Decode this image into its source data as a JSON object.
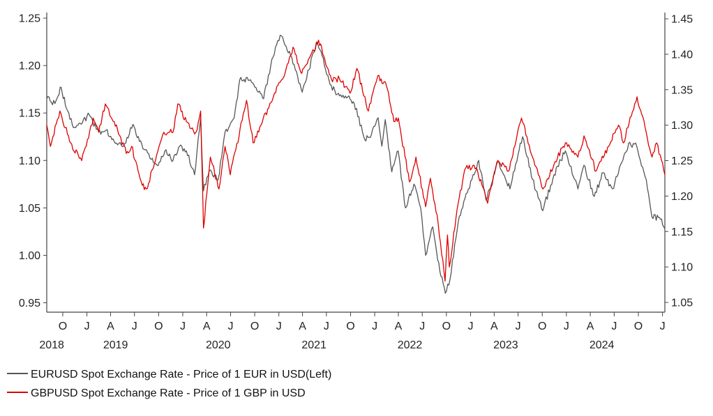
{
  "chart_data": {
    "type": "line",
    "title": "",
    "xlabel": "",
    "ylabel": "",
    "x_range": [
      "2018-08-01",
      "2025-01-10"
    ],
    "y_left": {
      "min": 0.95,
      "max": 1.25,
      "ticks": [
        "1.25",
        "1.20",
        "1.15",
        "1.10",
        "1.05",
        "1.00",
        "0.95"
      ]
    },
    "y_right": {
      "min": 1.05,
      "max": 1.45,
      "ticks": [
        "1.45",
        "1.40",
        "1.35",
        "1.30",
        "1.25",
        "1.20",
        "1.15",
        "1.10",
        "1.05"
      ]
    },
    "x_month_ticks": [
      {
        "date": "2018-10-01",
        "label": "O"
      },
      {
        "date": "2019-01-01",
        "label": "J"
      },
      {
        "date": "2019-04-01",
        "label": "A"
      },
      {
        "date": "2019-07-01",
        "label": "J"
      },
      {
        "date": "2019-10-01",
        "label": "O"
      },
      {
        "date": "2020-01-01",
        "label": "J"
      },
      {
        "date": "2020-04-01",
        "label": "A"
      },
      {
        "date": "2020-07-01",
        "label": "J"
      },
      {
        "date": "2020-10-01",
        "label": "O"
      },
      {
        "date": "2021-01-01",
        "label": "J"
      },
      {
        "date": "2021-04-01",
        "label": "A"
      },
      {
        "date": "2021-07-01",
        "label": "J"
      },
      {
        "date": "2021-10-01",
        "label": "O"
      },
      {
        "date": "2022-01-01",
        "label": "J"
      },
      {
        "date": "2022-04-01",
        "label": "A"
      },
      {
        "date": "2022-07-01",
        "label": "J"
      },
      {
        "date": "2022-10-01",
        "label": "O"
      },
      {
        "date": "2023-01-01",
        "label": "J"
      },
      {
        "date": "2023-04-01",
        "label": "A"
      },
      {
        "date": "2023-07-01",
        "label": "J"
      },
      {
        "date": "2023-10-01",
        "label": "O"
      },
      {
        "date": "2024-01-01",
        "label": "J"
      },
      {
        "date": "2024-04-01",
        "label": "A"
      },
      {
        "date": "2024-07-01",
        "label": "J"
      },
      {
        "date": "2024-10-01",
        "label": "O"
      },
      {
        "date": "2025-01-01",
        "label": "J"
      }
    ],
    "x_year_labels": [
      {
        "date": "2018-08-20",
        "label": "2018"
      },
      {
        "date": "2019-04-20",
        "label": "2019"
      },
      {
        "date": "2020-05-15",
        "label": "2020"
      },
      {
        "date": "2021-05-15",
        "label": "2021"
      },
      {
        "date": "2022-05-15",
        "label": "2022"
      },
      {
        "date": "2023-05-15",
        "label": "2023"
      },
      {
        "date": "2024-05-15",
        "label": "2024"
      }
    ],
    "grid": false,
    "legend_position": "bottom-left",
    "series": [
      {
        "name": "EURUSD Spot Exchange Rate - Price of 1 EUR in USD(Left)",
        "axis": "left",
        "color": "#555555",
        "points": [
          [
            "2018-08-01",
            1.165
          ],
          [
            "2018-09-01",
            1.16
          ],
          [
            "2018-09-25",
            1.177
          ],
          [
            "2018-10-15",
            1.155
          ],
          [
            "2018-11-15",
            1.135
          ],
          [
            "2018-12-15",
            1.14
          ],
          [
            "2019-01-10",
            1.148
          ],
          [
            "2019-02-15",
            1.13
          ],
          [
            "2019-03-15",
            1.132
          ],
          [
            "2019-04-15",
            1.12
          ],
          [
            "2019-05-20",
            1.115
          ],
          [
            "2019-06-25",
            1.138
          ],
          [
            "2019-07-20",
            1.12
          ],
          [
            "2019-08-20",
            1.108
          ],
          [
            "2019-09-25",
            1.095
          ],
          [
            "2019-10-25",
            1.11
          ],
          [
            "2019-11-25",
            1.1
          ],
          [
            "2019-12-20",
            1.115
          ],
          [
            "2020-01-15",
            1.11
          ],
          [
            "2020-02-15",
            1.085
          ],
          [
            "2020-03-09",
            1.145
          ],
          [
            "2020-03-20",
            1.068
          ],
          [
            "2020-04-15",
            1.09
          ],
          [
            "2020-05-15",
            1.08
          ],
          [
            "2020-06-10",
            1.13
          ],
          [
            "2020-07-15",
            1.145
          ],
          [
            "2020-08-05",
            1.185
          ],
          [
            "2020-09-15",
            1.185
          ],
          [
            "2020-10-15",
            1.172
          ],
          [
            "2020-11-04",
            1.165
          ],
          [
            "2020-12-01",
            1.2
          ],
          [
            "2021-01-06",
            1.232
          ],
          [
            "2021-02-15",
            1.21
          ],
          [
            "2021-03-31",
            1.172
          ],
          [
            "2021-05-25",
            1.225
          ],
          [
            "2021-06-15",
            1.21
          ],
          [
            "2021-07-15",
            1.18
          ],
          [
            "2021-08-20",
            1.168
          ],
          [
            "2021-09-25",
            1.168
          ],
          [
            "2021-10-15",
            1.16
          ],
          [
            "2021-11-24",
            1.122
          ],
          [
            "2021-12-20",
            1.128
          ],
          [
            "2022-01-14",
            1.145
          ],
          [
            "2022-01-28",
            1.115
          ],
          [
            "2022-02-10",
            1.143
          ],
          [
            "2022-03-07",
            1.088
          ],
          [
            "2022-03-31",
            1.11
          ],
          [
            "2022-04-28",
            1.05
          ],
          [
            "2022-05-30",
            1.075
          ],
          [
            "2022-06-25",
            1.05
          ],
          [
            "2022-07-14",
            1.0
          ],
          [
            "2022-08-10",
            1.03
          ],
          [
            "2022-08-29",
            0.995
          ],
          [
            "2022-09-27",
            0.96
          ],
          [
            "2022-10-15",
            0.975
          ],
          [
            "2022-11-15",
            1.035
          ],
          [
            "2022-12-15",
            1.065
          ],
          [
            "2023-01-15",
            1.085
          ],
          [
            "2023-02-01",
            1.1
          ],
          [
            "2023-03-01",
            1.058
          ],
          [
            "2023-04-15",
            1.1
          ],
          [
            "2023-05-31",
            1.07
          ],
          [
            "2023-07-18",
            1.125
          ],
          [
            "2023-08-25",
            1.08
          ],
          [
            "2023-10-03",
            1.047
          ],
          [
            "2023-11-15",
            1.085
          ],
          [
            "2023-12-28",
            1.11
          ],
          [
            "2024-02-14",
            1.07
          ],
          [
            "2024-03-08",
            1.095
          ],
          [
            "2024-04-16",
            1.062
          ],
          [
            "2024-05-20",
            1.087
          ],
          [
            "2024-06-25",
            1.07
          ],
          [
            "2024-08-25",
            1.118
          ],
          [
            "2024-09-25",
            1.115
          ],
          [
            "2024-10-31",
            1.08
          ],
          [
            "2024-11-22",
            1.04
          ],
          [
            "2024-12-20",
            1.04
          ],
          [
            "2025-01-10",
            1.028
          ]
        ]
      },
      {
        "name": "GBPUSD Spot Exchange Rate - Price of 1 GBP in USD",
        "axis": "right",
        "color": "#dd0000",
        "points": [
          [
            "2018-08-01",
            1.3
          ],
          [
            "2018-08-15",
            1.27
          ],
          [
            "2018-09-20",
            1.32
          ],
          [
            "2018-10-31",
            1.275
          ],
          [
            "2018-12-12",
            1.25
          ],
          [
            "2019-01-25",
            1.31
          ],
          [
            "2019-02-15",
            1.29
          ],
          [
            "2019-03-12",
            1.33
          ],
          [
            "2019-04-15",
            1.305
          ],
          [
            "2019-05-31",
            1.26
          ],
          [
            "2019-06-20",
            1.27
          ],
          [
            "2019-07-31",
            1.215
          ],
          [
            "2019-08-15",
            1.21
          ],
          [
            "2019-09-15",
            1.245
          ],
          [
            "2019-10-21",
            1.29
          ],
          [
            "2019-11-25",
            1.29
          ],
          [
            "2019-12-13",
            1.33
          ],
          [
            "2020-01-15",
            1.305
          ],
          [
            "2020-02-20",
            1.29
          ],
          [
            "2020-03-09",
            1.32
          ],
          [
            "2020-03-20",
            1.155
          ],
          [
            "2020-04-15",
            1.255
          ],
          [
            "2020-05-18",
            1.21
          ],
          [
            "2020-06-10",
            1.27
          ],
          [
            "2020-06-30",
            1.23
          ],
          [
            "2020-08-31",
            1.335
          ],
          [
            "2020-09-25",
            1.275
          ],
          [
            "2020-10-25",
            1.3
          ],
          [
            "2020-12-15",
            1.345
          ],
          [
            "2021-01-15",
            1.365
          ],
          [
            "2021-02-24",
            1.41
          ],
          [
            "2021-03-25",
            1.375
          ],
          [
            "2021-04-15",
            1.385
          ],
          [
            "2021-06-01",
            1.42
          ],
          [
            "2021-07-20",
            1.365
          ],
          [
            "2021-08-20",
            1.365
          ],
          [
            "2021-09-29",
            1.345
          ],
          [
            "2021-10-25",
            1.38
          ],
          [
            "2021-12-08",
            1.32
          ],
          [
            "2022-01-13",
            1.37
          ],
          [
            "2022-02-15",
            1.355
          ],
          [
            "2022-03-15",
            1.305
          ],
          [
            "2022-04-01",
            1.31
          ],
          [
            "2022-05-13",
            1.22
          ],
          [
            "2022-06-07",
            1.255
          ],
          [
            "2022-07-14",
            1.185
          ],
          [
            "2022-08-01",
            1.225
          ],
          [
            "2022-08-31",
            1.16
          ],
          [
            "2022-09-26",
            1.08
          ],
          [
            "2022-10-05",
            1.145
          ],
          [
            "2022-10-12",
            1.1
          ],
          [
            "2022-11-15",
            1.19
          ],
          [
            "2022-12-14",
            1.24
          ],
          [
            "2023-01-23",
            1.24
          ],
          [
            "2023-03-07",
            1.19
          ],
          [
            "2023-04-15",
            1.25
          ],
          [
            "2023-05-25",
            1.235
          ],
          [
            "2023-07-14",
            1.31
          ],
          [
            "2023-08-25",
            1.255
          ],
          [
            "2023-10-04",
            1.21
          ],
          [
            "2023-11-15",
            1.245
          ],
          [
            "2023-12-28",
            1.275
          ],
          [
            "2024-02-14",
            1.255
          ],
          [
            "2024-03-08",
            1.285
          ],
          [
            "2024-04-22",
            1.235
          ],
          [
            "2024-06-10",
            1.27
          ],
          [
            "2024-07-17",
            1.3
          ],
          [
            "2024-08-05",
            1.275
          ],
          [
            "2024-09-26",
            1.34
          ],
          [
            "2024-10-31",
            1.29
          ],
          [
            "2024-11-22",
            1.255
          ],
          [
            "2024-12-10",
            1.275
          ],
          [
            "2025-01-10",
            1.23
          ]
        ]
      }
    ]
  }
}
